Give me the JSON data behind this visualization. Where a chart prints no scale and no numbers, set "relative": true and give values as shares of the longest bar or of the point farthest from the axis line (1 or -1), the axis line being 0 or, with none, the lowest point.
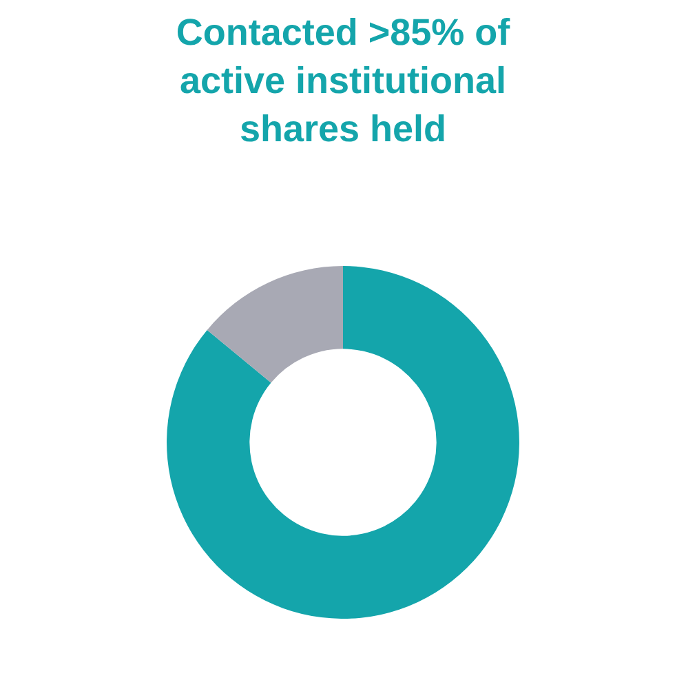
{
  "chart_data": {
    "type": "donut",
    "title": "Contacted >85% of active institutional shares held",
    "categories": [
      null,
      null
    ],
    "values": [
      86,
      14
    ],
    "colors": [
      "#14a5ab",
      "#a8a9b4"
    ],
    "relative": true,
    "legend": false
  }
}
